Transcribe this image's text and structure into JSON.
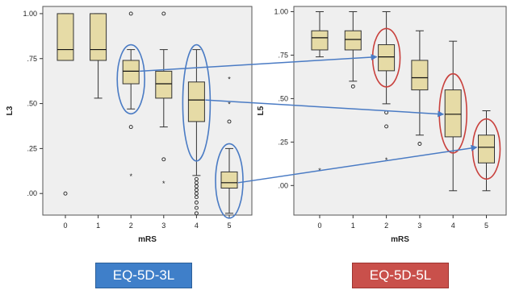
{
  "tags": {
    "left": "EQ-5D-3L",
    "right": "EQ-5D-5L"
  },
  "colors": {
    "plot_bg": "#efefef",
    "box_fill": "#e6dba6",
    "box_stroke": "#333333",
    "blue_highlight": "#4a7bc4",
    "red_highlight": "#c9413d",
    "arrow": "#4a7bc4"
  },
  "chart_data": [
    {
      "type": "boxplot",
      "title": "",
      "xlabel": "mRS",
      "ylabel": "L3",
      "categories": [
        "0",
        "1",
        "2",
        "3",
        "4",
        "5"
      ],
      "ylim": [
        -0.12,
        1.04
      ],
      "yticks": [
        0.0,
        0.25,
        0.5,
        0.75,
        1.0
      ],
      "ytick_labels": [
        ".00",
        ".25",
        ".50",
        ".75",
        "1.00"
      ],
      "grid": false,
      "boxes": [
        {
          "category": "0",
          "whisker_low": 0.74,
          "q1": 0.74,
          "median": 0.8,
          "q3": 1.0,
          "whisker_high": 1.0,
          "outliers": [
            0.0
          ],
          "extremes": []
        },
        {
          "category": "1",
          "whisker_low": 0.53,
          "q1": 0.74,
          "median": 0.8,
          "q3": 1.0,
          "whisker_high": 1.0,
          "outliers": [],
          "extremes": []
        },
        {
          "category": "2",
          "whisker_low": 0.47,
          "q1": 0.61,
          "median": 0.68,
          "q3": 0.74,
          "whisker_high": 0.8,
          "outliers": [
            0.37,
            1.0
          ],
          "extremes": [
            0.1
          ]
        },
        {
          "category": "3",
          "whisker_low": 0.37,
          "q1": 0.53,
          "median": 0.61,
          "q3": 0.68,
          "whisker_high": 0.8,
          "outliers": [
            0.19,
            1.0
          ],
          "extremes": [
            0.06
          ]
        },
        {
          "category": "4",
          "whisker_low": 0.1,
          "q1": 0.4,
          "median": 0.52,
          "q3": 0.62,
          "whisker_high": 0.8,
          "outliers": [
            0.08,
            0.06,
            0.04,
            0.02,
            0.0,
            -0.02,
            -0.05,
            -0.08,
            -0.11
          ],
          "extremes": []
        },
        {
          "category": "5",
          "whisker_low": -0.11,
          "q1": 0.03,
          "median": 0.06,
          "q3": 0.12,
          "whisker_high": 0.25,
          "outliers": [
            0.4
          ],
          "extremes": [
            0.64,
            0.5
          ]
        }
      ]
    },
    {
      "type": "boxplot",
      "title": "",
      "xlabel": "mRS",
      "ylabel": "L5",
      "categories": [
        "0",
        "1",
        "2",
        "3",
        "4",
        "5"
      ],
      "ylim": [
        -0.17,
        1.03
      ],
      "yticks": [
        0.0,
        0.25,
        0.5,
        0.75,
        1.0
      ],
      "ytick_labels": [
        ".00",
        ".25",
        ".50",
        ".75",
        "1.00"
      ],
      "grid": false,
      "boxes": [
        {
          "category": "0",
          "whisker_low": 0.74,
          "q1": 0.78,
          "median": 0.85,
          "q3": 0.89,
          "whisker_high": 1.0,
          "outliers": [],
          "extremes": [
            0.09
          ]
        },
        {
          "category": "1",
          "whisker_low": 0.6,
          "q1": 0.78,
          "median": 0.84,
          "q3": 0.89,
          "whisker_high": 1.0,
          "outliers": [
            0.57
          ],
          "extremes": []
        },
        {
          "category": "2",
          "whisker_low": 0.47,
          "q1": 0.66,
          "median": 0.74,
          "q3": 0.81,
          "whisker_high": 1.0,
          "outliers": [
            0.42,
            0.34
          ],
          "extremes": [
            0.15
          ]
        },
        {
          "category": "3",
          "whisker_low": 0.29,
          "q1": 0.55,
          "median": 0.62,
          "q3": 0.72,
          "whisker_high": 0.89,
          "outliers": [
            0.24
          ],
          "extremes": []
        },
        {
          "category": "4",
          "whisker_low": -0.03,
          "q1": 0.28,
          "median": 0.41,
          "q3": 0.55,
          "whisker_high": 0.83,
          "outliers": [],
          "extremes": []
        },
        {
          "category": "5",
          "whisker_low": -0.03,
          "q1": 0.13,
          "median": 0.22,
          "q3": 0.29,
          "whisker_high": 0.43,
          "outliers": [],
          "extremes": []
        }
      ]
    }
  ]
}
